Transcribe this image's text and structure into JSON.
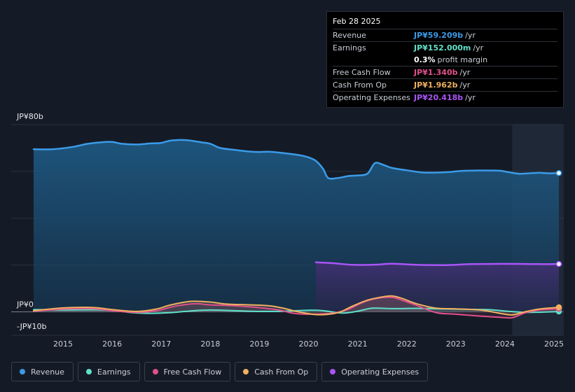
{
  "tooltip": {
    "date": "Feb 28 2025",
    "rows": [
      {
        "label": "Revenue",
        "value": "JP¥59.209b",
        "unit": "/yr",
        "color": "#3b9be8"
      },
      {
        "label": "Earnings",
        "value": "JP¥152.000m",
        "unit": "/yr",
        "color": "#5fe0c8"
      },
      {
        "label": "",
        "value": "0.3%",
        "unit": "profit margin",
        "color": "#ffffff"
      },
      {
        "label": "Free Cash Flow",
        "value": "JP¥1.340b",
        "unit": "/yr",
        "color": "#e0508c"
      },
      {
        "label": "Cash From Op",
        "value": "JP¥1.962b",
        "unit": "/yr",
        "color": "#f0b060"
      },
      {
        "label": "Operating Expenses",
        "value": "JP¥20.418b",
        "unit": "/yr",
        "color": "#a855f7"
      }
    ]
  },
  "legend": [
    {
      "label": "Revenue",
      "color": "#3b9be8"
    },
    {
      "label": "Earnings",
      "color": "#5fe0c8"
    },
    {
      "label": "Free Cash Flow",
      "color": "#e0508c"
    },
    {
      "label": "Cash From Op",
      "color": "#f0b060"
    },
    {
      "label": "Operating Expenses",
      "color": "#a855f7"
    }
  ],
  "chart_data": {
    "type": "area",
    "y_top_label": "JP¥80b",
    "y_zero_label": "JP¥0",
    "y_bottom_label": "-JP¥10b",
    "ylim": [
      -10,
      80
    ],
    "xlim": [
      2014.4,
      2025.2
    ],
    "highlight_start": 2024.15,
    "x_ticks": [
      "2015",
      "2016",
      "2017",
      "2018",
      "2019",
      "2020",
      "2021",
      "2022",
      "2023",
      "2024",
      "2025"
    ],
    "series": [
      {
        "name": "Revenue",
        "color": "#3b9be8",
        "fill": true,
        "points": [
          [
            2014.4,
            69.5
          ],
          [
            2014.8,
            69.5
          ],
          [
            2015.2,
            70.5
          ],
          [
            2015.5,
            71.8
          ],
          [
            2015.8,
            72.5
          ],
          [
            2016.0,
            72.6
          ],
          [
            2016.2,
            71.8
          ],
          [
            2016.5,
            71.5
          ],
          [
            2016.8,
            72
          ],
          [
            2017.0,
            72.2
          ],
          [
            2017.2,
            73.2
          ],
          [
            2017.5,
            73.4
          ],
          [
            2017.8,
            72.5
          ],
          [
            2018.0,
            71.8
          ],
          [
            2018.2,
            70
          ],
          [
            2018.5,
            69.2
          ],
          [
            2018.8,
            68.5
          ],
          [
            2019.0,
            68.3
          ],
          [
            2019.2,
            68.4
          ],
          [
            2019.5,
            67.8
          ],
          [
            2019.8,
            67
          ],
          [
            2020.0,
            66
          ],
          [
            2020.15,
            64.5
          ],
          [
            2020.3,
            61
          ],
          [
            2020.4,
            57.2
          ],
          [
            2020.6,
            57.2
          ],
          [
            2020.8,
            58
          ],
          [
            2021.0,
            58.3
          ],
          [
            2021.2,
            59
          ],
          [
            2021.35,
            63.5
          ],
          [
            2021.5,
            63
          ],
          [
            2021.7,
            61.5
          ],
          [
            2022.0,
            60.5
          ],
          [
            2022.3,
            59.6
          ],
          [
            2022.6,
            59.5
          ],
          [
            2022.9,
            59.8
          ],
          [
            2023.1,
            60.2
          ],
          [
            2023.4,
            60.4
          ],
          [
            2023.7,
            60.4
          ],
          [
            2023.9,
            60.3
          ],
          [
            2024.1,
            59.6
          ],
          [
            2024.3,
            59
          ],
          [
            2024.5,
            59.2
          ],
          [
            2024.7,
            59.4
          ],
          [
            2024.9,
            59.2
          ],
          [
            2025.1,
            59.3
          ]
        ]
      },
      {
        "name": "Operating Expenses",
        "color": "#a855f7",
        "fill": true,
        "points": [
          [
            2020.15,
            21.2
          ],
          [
            2020.5,
            20.8
          ],
          [
            2020.9,
            20.1
          ],
          [
            2021.4,
            20.2
          ],
          [
            2021.7,
            20.6
          ],
          [
            2022.2,
            20.1
          ],
          [
            2022.8,
            20
          ],
          [
            2023.3,
            20.4
          ],
          [
            2023.8,
            20.5
          ],
          [
            2024.3,
            20.5
          ],
          [
            2024.7,
            20.4
          ],
          [
            2025.1,
            20.45
          ]
        ]
      },
      {
        "name": "Earnings",
        "color": "#5fe0c8",
        "fill": false,
        "points": [
          [
            2014.4,
            1
          ],
          [
            2015,
            0.8
          ],
          [
            2015.6,
            0.9
          ],
          [
            2016,
            0.6
          ],
          [
            2016.4,
            -0.3
          ],
          [
            2016.8,
            -0.6
          ],
          [
            2017.2,
            -0.3
          ],
          [
            2017.6,
            0.4
          ],
          [
            2018,
            0.8
          ],
          [
            2018.5,
            0.5
          ],
          [
            2019,
            0.2
          ],
          [
            2019.5,
            0.3
          ],
          [
            2020,
            0.7
          ],
          [
            2020.3,
            0.5
          ],
          [
            2020.7,
            -0.5
          ],
          [
            2021,
            0.3
          ],
          [
            2021.3,
            1.6
          ],
          [
            2021.7,
            1.4
          ],
          [
            2022.2,
            1.5
          ],
          [
            2022.7,
            1.3
          ],
          [
            2023.2,
            1.1
          ],
          [
            2023.7,
            0.9
          ],
          [
            2024.1,
            0.2
          ],
          [
            2024.5,
            -0.2
          ],
          [
            2025.1,
            0.15
          ]
        ]
      },
      {
        "name": "Free Cash Flow",
        "color": "#e0508c",
        "fill": false,
        "points": [
          [
            2014.4,
            0.3
          ],
          [
            2015,
            1.2
          ],
          [
            2015.6,
            1.4
          ],
          [
            2016,
            0.5
          ],
          [
            2016.5,
            -0.2
          ],
          [
            2016.9,
            0.5
          ],
          [
            2017.3,
            2.5
          ],
          [
            2017.7,
            3.5
          ],
          [
            2018,
            3
          ],
          [
            2018.5,
            2.6
          ],
          [
            2019,
            1.8
          ],
          [
            2019.4,
            0.8
          ],
          [
            2019.7,
            -0.6
          ],
          [
            2020.1,
            -1
          ],
          [
            2020.5,
            -0.5
          ],
          [
            2020.8,
            1
          ],
          [
            2021.1,
            4
          ],
          [
            2021.4,
            5.8
          ],
          [
            2021.7,
            6.2
          ],
          [
            2021.9,
            5
          ],
          [
            2022.2,
            2.8
          ],
          [
            2022.6,
            -0.3
          ],
          [
            2023,
            -1
          ],
          [
            2023.5,
            -1.8
          ],
          [
            2023.9,
            -2.3
          ],
          [
            2024.15,
            -2.5
          ],
          [
            2024.4,
            -0.5
          ],
          [
            2024.7,
            0.8
          ],
          [
            2025.1,
            1.34
          ]
        ]
      },
      {
        "name": "Cash From Op",
        "color": "#f0b060",
        "fill": false,
        "points": [
          [
            2014.4,
            0.5
          ],
          [
            2015,
            1.7
          ],
          [
            2015.6,
            1.9
          ],
          [
            2016,
            1
          ],
          [
            2016.5,
            0.2
          ],
          [
            2016.9,
            1.2
          ],
          [
            2017.2,
            3
          ],
          [
            2017.6,
            4.5
          ],
          [
            2018,
            4.2
          ],
          [
            2018.3,
            3.4
          ],
          [
            2018.8,
            3
          ],
          [
            2019.2,
            2.6
          ],
          [
            2019.5,
            1.5
          ],
          [
            2019.8,
            0
          ],
          [
            2020.2,
            -1.2
          ],
          [
            2020.6,
            -0.3
          ],
          [
            2020.9,
            2.5
          ],
          [
            2021.2,
            5
          ],
          [
            2021.5,
            6.4
          ],
          [
            2021.7,
            6.8
          ],
          [
            2021.9,
            5.8
          ],
          [
            2022.2,
            3.5
          ],
          [
            2022.6,
            1.6
          ],
          [
            2023,
            1.3
          ],
          [
            2023.5,
            0.8
          ],
          [
            2023.9,
            -0.6
          ],
          [
            2024.15,
            -1.3
          ],
          [
            2024.4,
            0
          ],
          [
            2024.7,
            1.2
          ],
          [
            2025.1,
            1.96
          ]
        ]
      }
    ]
  }
}
